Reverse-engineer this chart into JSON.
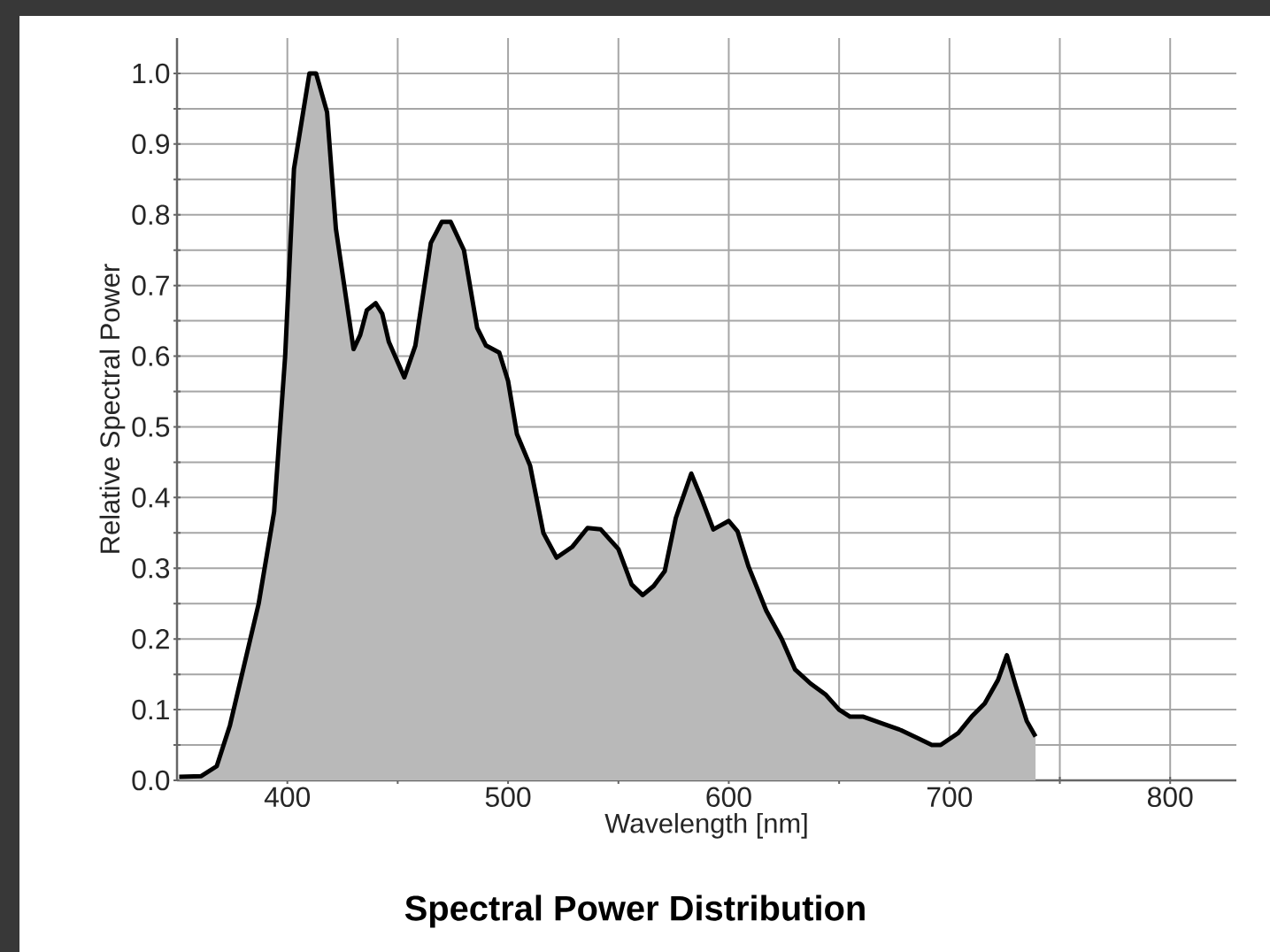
{
  "chart_data": {
    "type": "area",
    "title": "Spectral Power Distribution",
    "xlabel": "Wavelength [nm]",
    "ylabel": "Relative Spectral Power",
    "x": [
      351,
      361,
      368,
      374,
      387,
      394,
      399,
      403,
      410,
      413,
      418,
      422,
      430,
      433,
      436,
      440,
      443,
      446,
      453,
      458,
      465,
      470,
      474,
      480,
      486,
      490,
      496,
      500,
      504,
      510,
      516,
      522,
      529,
      536,
      542,
      550,
      556,
      561,
      566,
      571,
      576,
      583,
      588,
      593,
      600,
      604,
      609,
      617,
      624,
      630,
      637,
      644,
      650,
      655,
      661,
      670,
      678,
      686,
      692,
      696,
      704,
      710,
      716,
      722,
      726,
      730,
      735,
      739
    ],
    "values": [
      0.005,
      0.006,
      0.02,
      0.078,
      0.25,
      0.38,
      0.6,
      0.865,
      1.0,
      1.0,
      0.945,
      0.78,
      0.61,
      0.63,
      0.665,
      0.675,
      0.66,
      0.62,
      0.57,
      0.615,
      0.76,
      0.79,
      0.79,
      0.75,
      0.64,
      0.615,
      0.605,
      0.565,
      0.49,
      0.445,
      0.35,
      0.315,
      0.33,
      0.357,
      0.355,
      0.327,
      0.277,
      0.262,
      0.275,
      0.296,
      0.371,
      0.434,
      0.396,
      0.355,
      0.367,
      0.352,
      0.302,
      0.24,
      0.2,
      0.157,
      0.137,
      0.121,
      0.1,
      0.09,
      0.09,
      0.08,
      0.071,
      0.059,
      0.05,
      0.05,
      0.067,
      0.09,
      0.109,
      0.142,
      0.177,
      0.134,
      0.084,
      0.062
    ],
    "color": "#000000",
    "xlim": [
      350,
      830
    ],
    "ylim": [
      0,
      1.05
    ],
    "xticks": [
      400,
      {
        "value": 450,
        "label": null
      },
      500,
      {
        "value": 550,
        "label": null
      },
      600,
      {
        "value": 650,
        "label": null
      },
      700,
      {
        "value": 750,
        "label": null
      },
      800
    ],
    "yticks": [
      {
        "value": 0,
        "label": "0.0"
      },
      {
        "value": 0.05,
        "label": null
      },
      0.1,
      {
        "value": 0.15,
        "label": null
      },
      0.2,
      {
        "value": 0.25,
        "label": null
      },
      0.3,
      {
        "value": 0.35,
        "label": null
      },
      0.4,
      {
        "value": 0.45,
        "label": null
      },
      0.5,
      {
        "value": 0.55,
        "label": null
      },
      0.6,
      {
        "value": 0.65,
        "label": null
      },
      0.7,
      {
        "value": 0.75,
        "label": null
      },
      0.8,
      {
        "value": 0.85,
        "label": null
      },
      0.9,
      {
        "value": 0.95,
        "label": null
      },
      {
        "value": 1,
        "label": "1.0"
      }
    ],
    "grid": true,
    "line_style": "solid"
  }
}
